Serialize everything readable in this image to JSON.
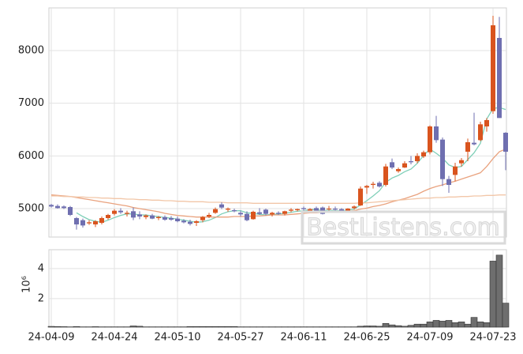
{
  "chart_data": [
    {
      "type": "candlestick",
      "up_color": "#d9541e",
      "down_color": "#6f6fb0",
      "open": [
        5070,
        5050,
        5040,
        5030,
        4820,
        4780,
        4720,
        4700,
        4730,
        4820,
        4900,
        4960,
        4900,
        4950,
        4890,
        4840,
        4870,
        4820,
        4840,
        4820,
        4810,
        4770,
        4750,
        4730,
        4780,
        4850,
        4920,
        5080,
        4980,
        4970,
        4920,
        4900,
        4800,
        4930,
        4980,
        4890,
        4920,
        4900,
        4960,
        4970,
        5010,
        4960,
        5010,
        5020,
        4990,
        5000,
        4990,
        4950,
        5010,
        5060,
        5400,
        5450,
        5490,
        5450,
        5880,
        5710,
        5780,
        5900,
        5900,
        5990,
        6070,
        6560,
        6310,
        5560,
        5640,
        5860,
        6080,
        6250,
        6300,
        6560,
        6850,
        8240,
        6440
      ],
      "high": [
        5090,
        5080,
        5060,
        5050,
        4840,
        4810,
        4780,
        4780,
        4850,
        4900,
        4990,
        5010,
        4960,
        5020,
        4950,
        4890,
        4900,
        4860,
        4870,
        4860,
        4850,
        4800,
        4790,
        4780,
        4860,
        4920,
        5020,
        5120,
        5020,
        5000,
        4960,
        4950,
        4960,
        5010,
        5000,
        4940,
        4950,
        4960,
        5010,
        5000,
        5040,
        5010,
        5040,
        5040,
        5050,
        5040,
        5010,
        5010,
        5060,
        5420,
        5450,
        5510,
        5520,
        5850,
        5950,
        5780,
        5900,
        6000,
        6050,
        6100,
        6580,
        6760,
        6350,
        5620,
        5870,
        5960,
        6330,
        6820,
        6650,
        6720,
        8660,
        8640,
        6450
      ],
      "low": [
        5020,
        5000,
        4990,
        4860,
        4600,
        4640,
        4690,
        4650,
        4700,
        4790,
        4870,
        4900,
        4850,
        4780,
        4800,
        4800,
        4800,
        4780,
        4770,
        4770,
        4740,
        4720,
        4680,
        4670,
        4740,
        4820,
        4900,
        4990,
        4940,
        4930,
        4850,
        4760,
        4790,
        4880,
        4870,
        4850,
        4880,
        4870,
        4930,
        4950,
        4960,
        4940,
        4950,
        4890,
        4960,
        4960,
        4940,
        4930,
        4980,
        5050,
        5280,
        5380,
        5400,
        5420,
        5750,
        5680,
        5770,
        5840,
        5860,
        5960,
        6030,
        6250,
        5430,
        5300,
        5520,
        5800,
        5900,
        6200,
        6280,
        6460,
        6800,
        6720,
        5730
      ],
      "close": [
        5040,
        5010,
        5010,
        4880,
        4700,
        4680,
        4740,
        4760,
        4820,
        4880,
        4960,
        4930,
        4920,
        4830,
        4850,
        4870,
        4810,
        4840,
        4790,
        4790,
        4760,
        4740,
        4710,
        4760,
        4840,
        4880,
        4990,
        5020,
        5000,
        4950,
        4890,
        4780,
        4940,
        4900,
        4900,
        4920,
        4900,
        4950,
        4980,
        4990,
        4990,
        4990,
        4960,
        4900,
        5000,
        4980,
        4960,
        5000,
        5040,
        5380,
        5430,
        5470,
        5420,
        5800,
        5780,
        5750,
        5860,
        5880,
        6000,
        6070,
        6560,
        6300,
        5560,
        5450,
        5800,
        5920,
        6260,
        6220,
        6600,
        6680,
        8480,
        6720,
        6080
      ],
      "series": [
        {
          "color": "#7fcfb8",
          "values": [
            null,
            null,
            null,
            null,
            4920,
            4850,
            4790,
            4760,
            4740,
            4780,
            4830,
            4870,
            4900,
            4900,
            4880,
            4880,
            4860,
            4850,
            4830,
            4820,
            4800,
            4780,
            4760,
            4740,
            4750,
            4780,
            4830,
            4900,
            4940,
            4960,
            4960,
            4920,
            4910,
            4890,
            4880,
            4890,
            4900,
            4910,
            4930,
            4950,
            4960,
            4980,
            4980,
            4960,
            4970,
            4960,
            4960,
            4970,
            4990,
            5070,
            5150,
            5240,
            5340,
            5500,
            5580,
            5630,
            5700,
            5750,
            5860,
            6010,
            6130,
            6050,
            5960,
            5830,
            5780,
            5800,
            5930,
            6060,
            6240,
            6700,
            6900,
            6920,
            6880
          ]
        },
        {
          "color": "#e9a27e",
          "values": [
            5260,
            5250,
            5240,
            5230,
            5210,
            5190,
            5170,
            5150,
            5130,
            5110,
            5090,
            5070,
            5050,
            5020,
            5000,
            4980,
            4960,
            4940,
            4910,
            4890,
            4870,
            4860,
            4850,
            4840,
            4840,
            4840,
            4840,
            4840,
            4840,
            4850,
            4850,
            4850,
            4860,
            4860,
            4870,
            4880,
            4880,
            4880,
            4890,
            4900,
            4910,
            4920,
            4920,
            4930,
            4940,
            4940,
            4950,
            4950,
            4960,
            4990,
            5010,
            5040,
            5060,
            5090,
            5130,
            5160,
            5190,
            5230,
            5270,
            5330,
            5380,
            5420,
            5450,
            5490,
            5520,
            5560,
            5600,
            5640,
            5680,
            5800,
            5950,
            6080,
            6130
          ]
        },
        {
          "color": "#f2c6a8",
          "values": [
            5240,
            5240,
            5230,
            5230,
            5220,
            5220,
            5210,
            5210,
            5200,
            5200,
            5190,
            5190,
            5180,
            5180,
            5170,
            5170,
            5160,
            5160,
            5150,
            5150,
            5140,
            5140,
            5130,
            5130,
            5130,
            5120,
            5120,
            5120,
            5110,
            5110,
            5110,
            5110,
            5100,
            5100,
            5100,
            5100,
            5100,
            5100,
            5100,
            5100,
            5100,
            5100,
            5100,
            5100,
            5100,
            5100,
            5100,
            5100,
            5100,
            5110,
            5110,
            5120,
            5130,
            5140,
            5150,
            5160,
            5170,
            5180,
            5190,
            5200,
            5200,
            5210,
            5210,
            5220,
            5220,
            5230,
            5230,
            5240,
            5240,
            5250,
            5250,
            5260,
            5260
          ]
        }
      ],
      "ylim": [
        4460,
        8810
      ],
      "yticks": [
        5000,
        6000,
        7000,
        8000
      ],
      "grid": true,
      "watermark": "BestListens.com"
    },
    {
      "type": "bar",
      "color": "#6e6e6e",
      "ylabel": "10⁶",
      "categories": [
        "24-04-09",
        null,
        null,
        null,
        null,
        null,
        null,
        null,
        null,
        null,
        "24-04-24",
        null,
        null,
        null,
        null,
        null,
        null,
        null,
        null,
        null,
        "24-05-10",
        null,
        null,
        null,
        null,
        null,
        null,
        null,
        null,
        null,
        "24-05-27",
        null,
        null,
        null,
        null,
        null,
        null,
        null,
        null,
        null,
        "24-06-11",
        null,
        null,
        null,
        null,
        null,
        null,
        null,
        null,
        null,
        "24-06-25",
        null,
        null,
        null,
        null,
        null,
        null,
        null,
        null,
        null,
        "24-07-09",
        null,
        null,
        null,
        null,
        null,
        null,
        null,
        null,
        null,
        "24-07-23",
        null,
        null
      ],
      "values": [
        0.15,
        0.14,
        0.13,
        0.12,
        0.14,
        0.12,
        0.12,
        0.13,
        0.12,
        0.12,
        0.12,
        0.12,
        0.12,
        0.18,
        0.16,
        0.12,
        0.12,
        0.12,
        0.12,
        0.12,
        0.12,
        0.12,
        0.14,
        0.14,
        0.14,
        0.14,
        0.14,
        0.14,
        0.14,
        0.14,
        0.12,
        0.12,
        0.12,
        0.12,
        0.12,
        0.12,
        0.12,
        0.12,
        0.12,
        0.12,
        0.12,
        0.12,
        0.12,
        0.12,
        0.12,
        0.12,
        0.12,
        0.12,
        0.12,
        0.16,
        0.18,
        0.18,
        0.16,
        0.35,
        0.25,
        0.2,
        0.16,
        0.22,
        0.3,
        0.3,
        0.45,
        0.55,
        0.5,
        0.55,
        0.4,
        0.45,
        0.3,
        0.75,
        0.45,
        0.4,
        4.5,
        4.9,
        1.7
      ],
      "ylim": [
        0.1,
        5.26
      ],
      "yticks": [
        2,
        4
      ],
      "grid": true
    }
  ]
}
